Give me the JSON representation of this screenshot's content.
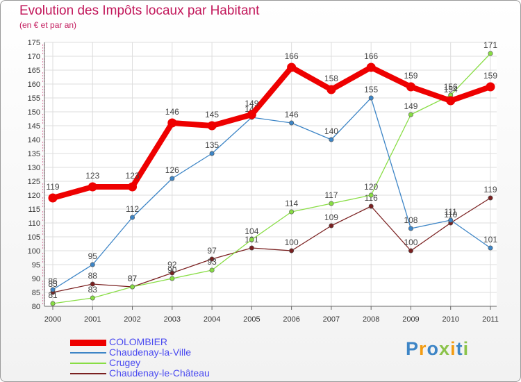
{
  "chart_data": {
    "type": "line",
    "title": "Evolution des Impôts locaux par Habitant",
    "subtitle": "(en € et par an)",
    "categories": [
      "2000",
      "2001",
      "2002",
      "2003",
      "2004",
      "2005",
      "2006",
      "2007",
      "2008",
      "2009",
      "2010",
      "2011"
    ],
    "ylim": [
      80,
      175
    ],
    "ytick_step": 5,
    "grid": true,
    "legend_position": "bottom-left",
    "series": [
      {
        "name": "COLOMBIER",
        "color": "#ee0000",
        "values": [
          119,
          123,
          123,
          146,
          145,
          149,
          166,
          158,
          166,
          159,
          154,
          159
        ],
        "labels": [
          "119",
          "123",
          "123",
          "146",
          "145",
          "149",
          "166",
          "158",
          "166",
          "159",
          "154",
          "159"
        ]
      },
      {
        "name": "Chaudenay-la-Ville",
        "color": "#3d85c6",
        "values": [
          86,
          95,
          112,
          126,
          135,
          148,
          146,
          140,
          155,
          108,
          111,
          101
        ],
        "labels": [
          "86",
          "95",
          "112",
          "126",
          "135",
          "148",
          "146",
          "140",
          "155",
          "108",
          "111",
          "101"
        ]
      },
      {
        "name": "Crugey",
        "color": "#88dd44",
        "values": [
          81,
          83,
          87,
          90,
          93,
          104,
          114,
          117,
          120,
          149,
          156,
          171
        ],
        "labels": [
          "81",
          "83",
          "87",
          "90",
          "93",
          "104",
          "114",
          "117",
          "120",
          "149",
          "156",
          "171"
        ]
      },
      {
        "name": "Chaudenay-le-Château",
        "color": "#7a2020",
        "values": [
          85,
          88,
          87,
          92,
          97,
          101,
          100,
          109,
          116,
          100,
          110,
          119
        ],
        "labels": [
          "85",
          "88",
          "87",
          "92",
          "97",
          "101",
          "100",
          "109",
          "116",
          "100",
          "110",
          "119"
        ]
      }
    ]
  },
  "brand": {
    "letters": [
      "P",
      "r",
      "o",
      "x",
      "i",
      "t",
      "i"
    ],
    "colors": [
      "#3d85c6",
      "#f39c12",
      "#3d85c6",
      "#8bc34a",
      "#f39c12",
      "#3d85c6",
      "#8bc34a"
    ]
  }
}
